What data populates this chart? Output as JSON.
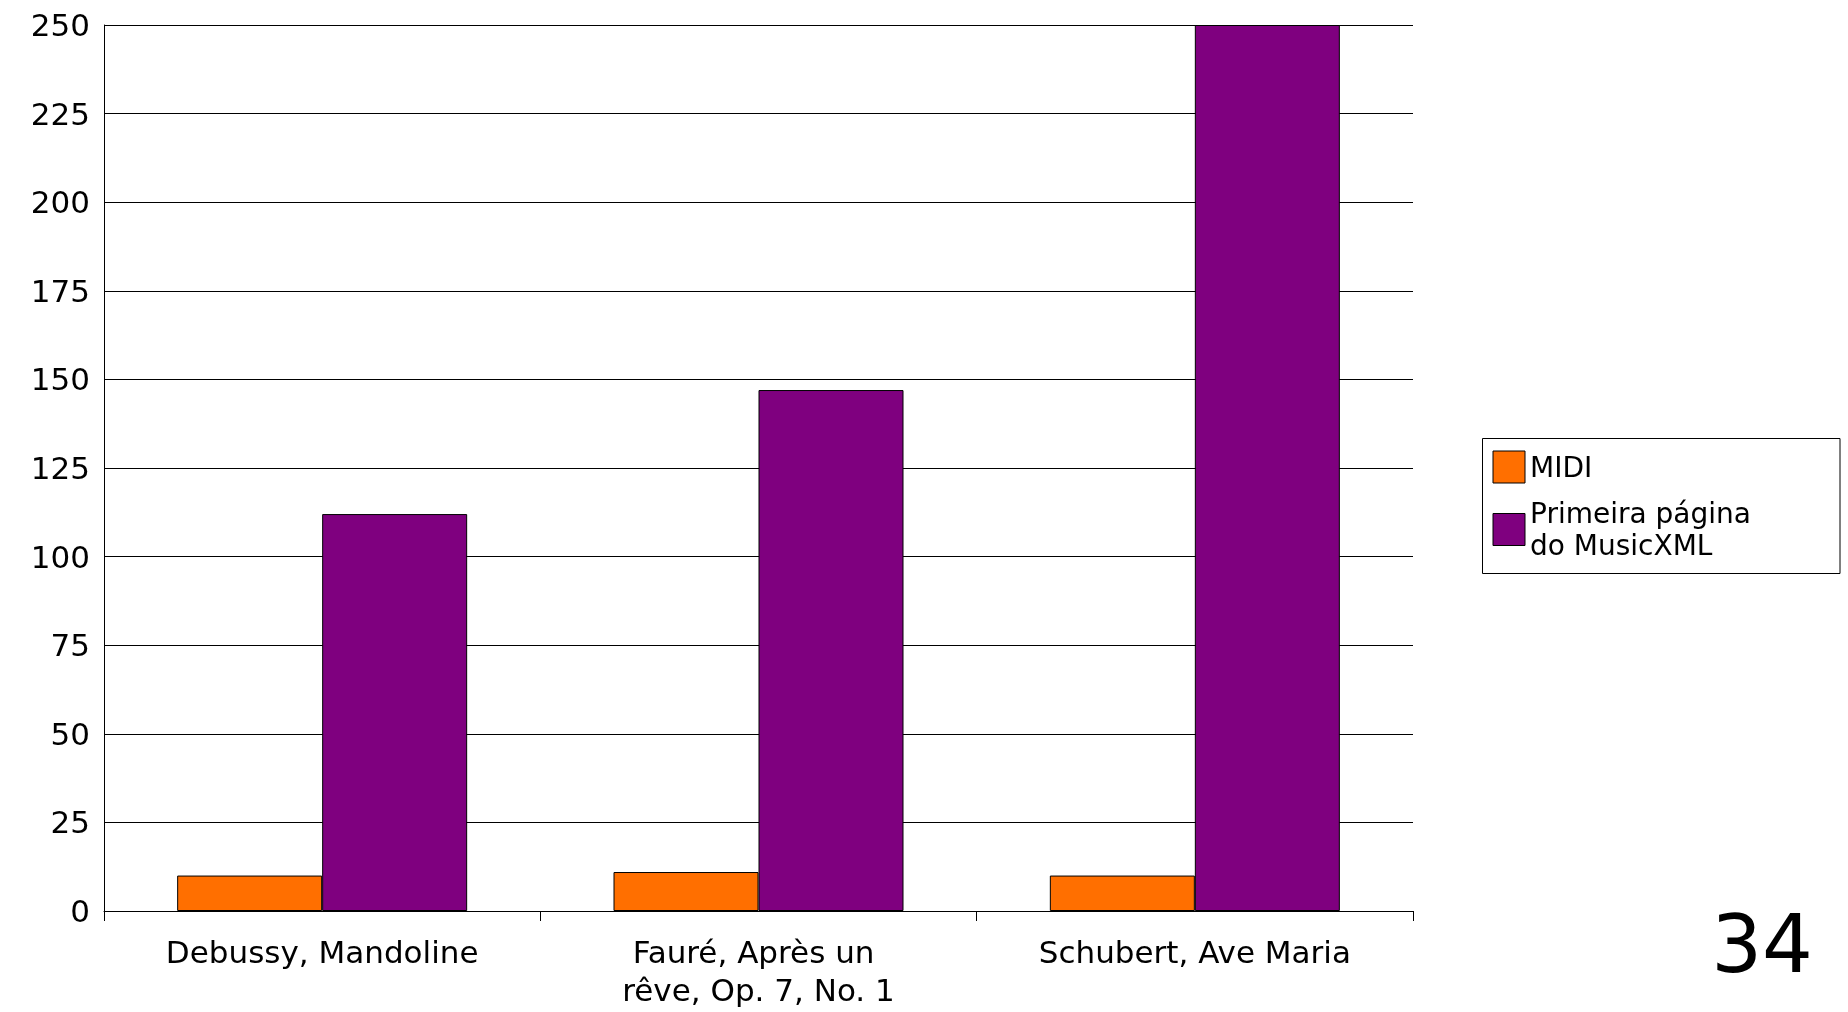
{
  "chart_data": {
    "type": "bar",
    "categories": [
      "Debussy, Mandoline",
      "Fauré, Après un rêve, Op. 7, No. 1",
      "Schubert, Ave Maria"
    ],
    "series": [
      {
        "name": "MIDI",
        "color": "#ff6f00",
        "values": [
          10,
          11,
          10
        ]
      },
      {
        "name": "Primeira página do MusicXML",
        "color": "#7f007f",
        "values": [
          112,
          147,
          250
        ]
      }
    ],
    "ylim": [
      0,
      250
    ],
    "yticks": [
      0,
      25,
      50,
      75,
      100,
      125,
      150,
      175,
      200,
      225,
      250
    ],
    "grid": "y",
    "legend": "right",
    "annotations": [
      "34"
    ]
  }
}
